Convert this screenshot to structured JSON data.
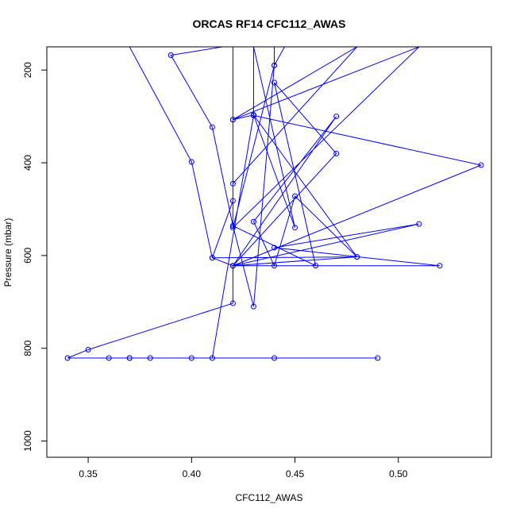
{
  "chart_data": {
    "type": "line",
    "title": "ORCAS RF14 CFC112_AWAS",
    "xlabel": "CFC112_AWAS",
    "ylabel": "Pressure (mbar)",
    "xlim": [
      0.33,
      0.545
    ],
    "ylim": [
      1035,
      150
    ],
    "y_reversed": true,
    "x_ticks": [
      0.35,
      0.4,
      0.45,
      0.5
    ],
    "x_tick_labels": [
      "0.35",
      "0.40",
      "0.45",
      "0.50"
    ],
    "y_ticks": [
      200,
      400,
      600,
      800,
      1000
    ],
    "y_tick_labels": [
      "200",
      "400",
      "600",
      "800",
      "1000"
    ],
    "grid": false,
    "legend": "none",
    "colors": {
      "series": "#0000ff",
      "axis": "#000000",
      "background": "#ffffff"
    },
    "series": [
      {
        "marker": "open-circle",
        "points": [
          [
            0.49,
            821
          ],
          [
            0.34,
            821
          ],
          [
            0.35,
            803
          ],
          [
            0.42,
            703
          ],
          [
            0.42,
            622
          ],
          [
            0.41,
            605
          ],
          [
            0.4,
            398
          ],
          [
            0.37,
            150
          ],
          [
            0.445,
            150
          ],
          [
            0.44,
            190
          ],
          [
            0.42,
            540
          ],
          [
            0.51,
            150
          ],
          [
            0.42,
            307
          ],
          [
            0.48,
            150
          ],
          [
            0.42,
            445
          ],
          [
            0.42,
            536
          ],
          [
            0.46,
            622
          ],
          [
            0.44,
            227
          ],
          [
            0.47,
            380
          ],
          [
            0.42,
            622
          ],
          [
            0.47,
            300
          ],
          [
            0.43,
            527
          ],
          [
            0.44,
            622
          ],
          [
            0.45,
            472
          ],
          [
            0.48,
            603
          ],
          [
            0.43,
            297
          ],
          [
            0.45,
            540
          ],
          [
            0.43,
            150
          ],
          [
            0.43,
            298
          ],
          [
            0.54,
            405
          ],
          [
            0.42,
            622
          ],
          [
            0.52,
            622
          ],
          [
            0.44,
            583
          ],
          [
            0.51,
            532
          ],
          [
            0.42,
            622
          ],
          [
            0.48,
            603
          ],
          [
            0.41,
            605
          ],
          [
            0.42,
            482
          ],
          [
            0.42,
            150
          ],
          [
            0.42,
            536
          ],
          [
            0.41,
            323
          ],
          [
            0.39,
            168
          ],
          [
            0.415,
            150
          ],
          [
            0.44,
            150
          ],
          [
            0.44,
            190
          ],
          [
            0.43,
            710
          ],
          [
            0.42,
            536
          ],
          [
            0.42,
            307
          ],
          [
            0.43,
            297
          ],
          [
            0.41,
            821
          ],
          [
            0.4,
            821
          ],
          [
            0.38,
            821
          ],
          [
            0.37,
            821
          ],
          [
            0.36,
            821
          ],
          [
            0.44,
            821
          ],
          [
            0.37,
            821
          ]
        ]
      }
    ]
  }
}
